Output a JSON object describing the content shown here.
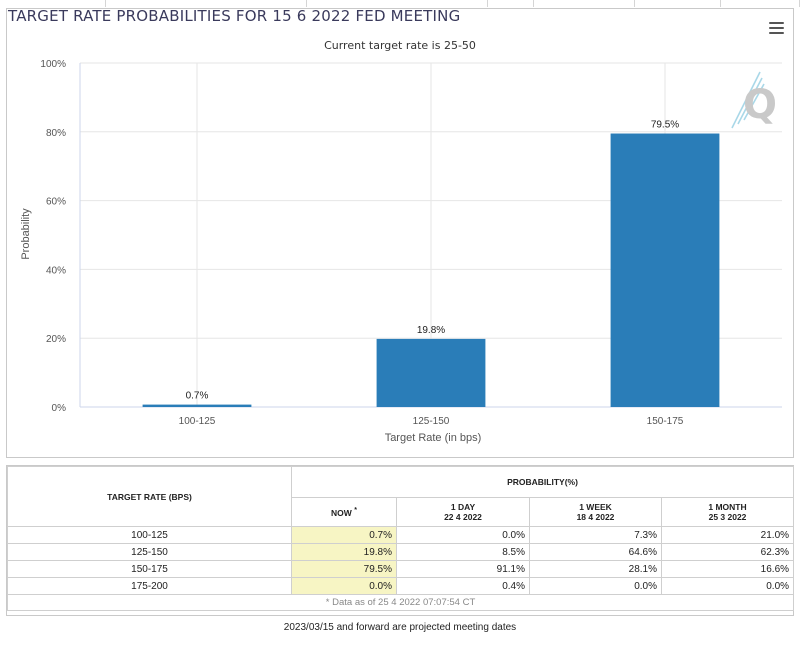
{
  "chart_data": {
    "type": "bar",
    "title": "TARGET RATE PROBABILITIES FOR 15 6 2022 FED MEETING",
    "subtitle": "Current target rate is 25-50",
    "categories": [
      "100-125",
      "125-150",
      "150-175"
    ],
    "values": [
      0.7,
      19.8,
      79.5
    ],
    "data_labels": [
      "0.7%",
      "19.8%",
      "79.5%"
    ],
    "xlabel": "Target Rate (in bps)",
    "ylabel": "Probability",
    "ylim": [
      0,
      100
    ],
    "yticks": [
      "0%",
      "20%",
      "40%",
      "60%",
      "80%",
      "100%"
    ],
    "grid": true,
    "color": "#2a7db8"
  },
  "menu": {
    "icon": "hamburger-menu-icon"
  },
  "watermark": {
    "icon": "cme-q-logo-icon"
  },
  "table": {
    "rate_header": "TARGET RATE (BPS)",
    "prob_header": "PROBABILITY(%)",
    "now_label": "NOW",
    "now_mark": "*",
    "columns": [
      {
        "label": "1 DAY",
        "date": "22 4 2022"
      },
      {
        "label": "1 WEEK",
        "date": "18 4 2022"
      },
      {
        "label": "1 MONTH",
        "date": "25 3 2022"
      }
    ],
    "rows": [
      {
        "rate": "100-125",
        "now": "0.7%",
        "d1": "0.0%",
        "w1": "7.3%",
        "m1": "21.0%"
      },
      {
        "rate": "125-150",
        "now": "19.8%",
        "d1": "8.5%",
        "w1": "64.6%",
        "m1": "62.3%"
      },
      {
        "rate": "150-175",
        "now": "79.5%",
        "d1": "91.1%",
        "w1": "28.1%",
        "m1": "16.6%"
      },
      {
        "rate": "175-200",
        "now": "0.0%",
        "d1": "0.4%",
        "w1": "0.0%",
        "m1": "0.0%"
      }
    ],
    "footnote": "* Data as of 25 4 2022 07:07:54 CT"
  },
  "footer": "2023/03/15 and forward are projected meeting dates"
}
